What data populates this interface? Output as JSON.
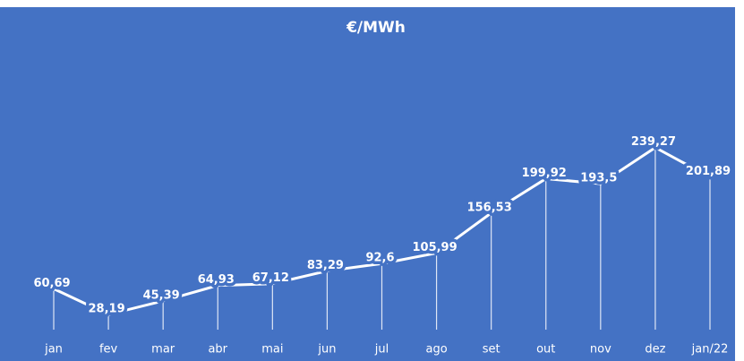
{
  "chart_data": {
    "type": "line",
    "subtitle": "€/MWh",
    "categories": [
      "jan",
      "fev",
      "mar",
      "abr",
      "mai",
      "jun",
      "jul",
      "ago",
      "set",
      "out",
      "nov",
      "dez",
      "jan/22"
    ],
    "values": [
      60.69,
      28.19,
      45.39,
      64.93,
      67.12,
      83.29,
      92.6,
      105.99,
      156.53,
      199.92,
      193.5,
      239.27,
      201.89
    ],
    "value_labels": [
      "60,69",
      "28,19",
      "45,39",
      "64,93",
      "67,12",
      "83,29",
      "92,6",
      "105,99",
      "156,53",
      "199,92",
      "193,5",
      "239,27",
      "201,89"
    ],
    "color": "#ffffff",
    "background": "#4472c4"
  }
}
